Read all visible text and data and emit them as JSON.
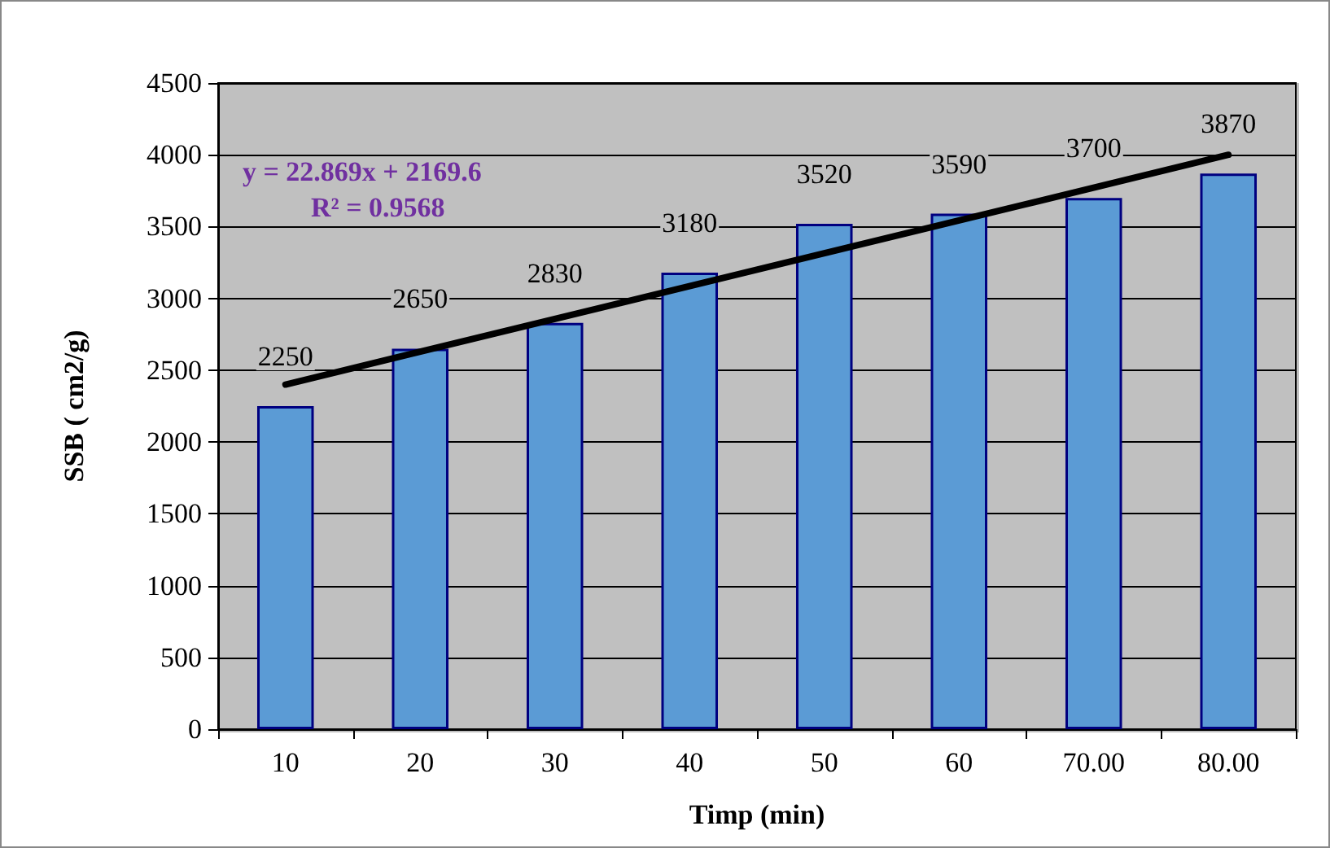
{
  "chart_data": {
    "type": "bar",
    "xlabel": "Timp (min)",
    "ylabel": "SSB ( cm2/g)",
    "categories": [
      "10",
      "20",
      "30",
      "40",
      "50",
      "60",
      "70.00",
      "80.00"
    ],
    "series": [
      {
        "color": "#5b9bd5",
        "values": [
          2250,
          2650,
          2830,
          3180,
          3520,
          3590,
          3700,
          3870
        ],
        "value_labels": [
          "2250",
          "2650",
          "2830",
          "3180",
          "3520",
          "3590",
          "3700",
          "3870"
        ]
      },
      {
        "type": "line",
        "color": "#000000",
        "x": [
          "10",
          "80.00"
        ],
        "values": [
          2400,
          4000
        ],
        "marker": "none",
        "line_style": "solid"
      }
    ],
    "annotations": [
      "y = 22.869x + 2169.6",
      "R² = 0.9568"
    ],
    "ylim": [
      0,
      4500
    ],
    "yticks": [
      0,
      500,
      1000,
      1500,
      2000,
      2500,
      3000,
      3500,
      4000,
      4500
    ],
    "grid": "y"
  }
}
